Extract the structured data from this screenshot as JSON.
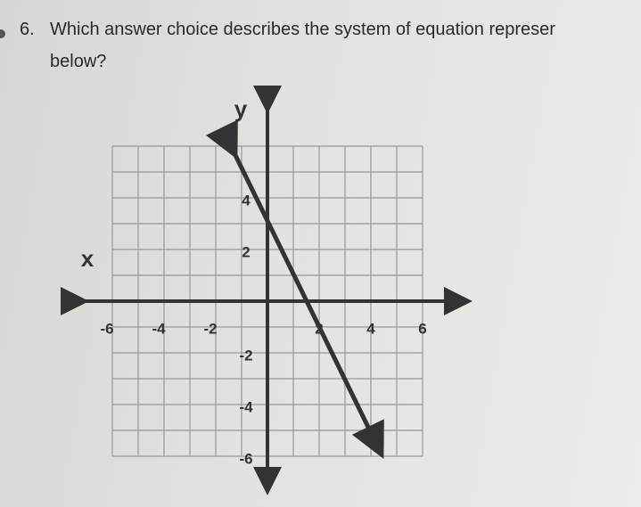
{
  "question": {
    "number": "6.",
    "lines": [
      "Which answer choice describes the system of equation represer",
      "below?"
    ]
  },
  "graph": {
    "y_label": "y",
    "x_label": "x",
    "x_tick_labels": [
      "-6",
      "-4",
      "-2",
      "2",
      "4",
      "6"
    ],
    "y_tick_labels": [
      "4",
      "2",
      "-2",
      "-4",
      "-6"
    ]
  }
}
